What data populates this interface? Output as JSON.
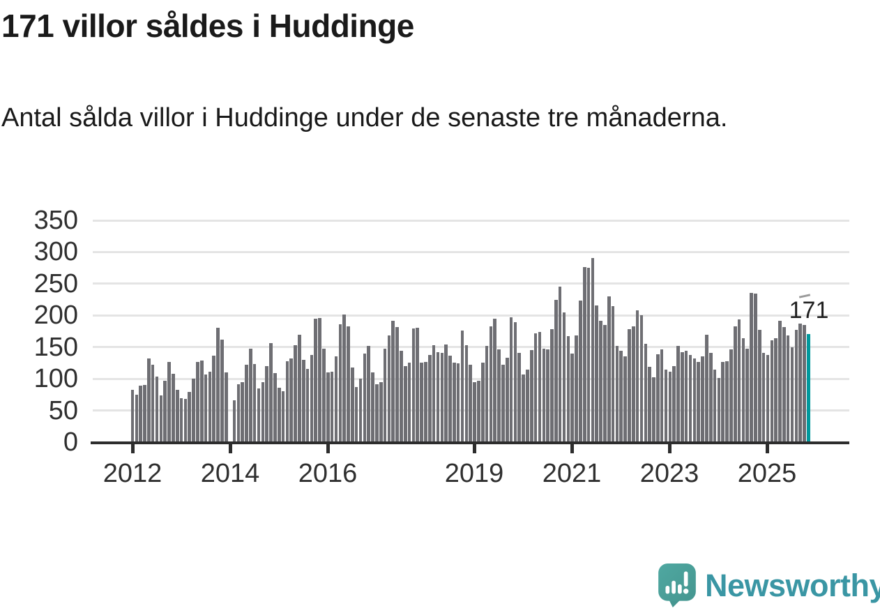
{
  "header": {
    "title": "171 villor såldes i Huddinge",
    "subtitle": "Antal sålda villor i Huddinge under de senaste tre månaderna."
  },
  "chart_data": {
    "type": "bar",
    "title": "171 villor såldes i Huddinge",
    "subtitle": "Antal sålda villor i Huddinge under de senaste tre månaderna.",
    "xlabel": "",
    "ylabel": "",
    "ylim": [
      0,
      350
    ],
    "grid": true,
    "start_month": "2012-01",
    "end_month": "2025-11",
    "y_ticks": [
      0,
      50,
      100,
      150,
      200,
      250,
      300,
      350
    ],
    "x_tick_years": [
      2012,
      2014,
      2016,
      2019,
      2021,
      2023,
      2025
    ],
    "values": [
      82,
      75,
      89,
      90,
      132,
      122,
      104,
      74,
      97,
      127,
      108,
      82,
      69,
      68,
      79,
      100,
      127,
      129,
      107,
      111,
      136,
      181,
      162,
      110,
      null,
      66,
      91,
      95,
      122,
      147,
      123,
      85,
      95,
      120,
      156,
      109,
      86,
      80,
      128,
      132,
      153,
      170,
      130,
      116,
      138,
      195,
      196,
      147,
      110,
      111,
      135,
      186,
      201,
      183,
      118,
      87,
      100,
      140,
      152,
      110,
      91,
      95,
      148,
      168,
      191,
      182,
      144,
      120,
      125,
      179,
      180,
      125,
      127,
      138,
      153,
      142,
      141,
      154,
      137,
      125,
      124,
      176,
      153,
      122,
      95,
      97,
      126,
      152,
      183,
      195,
      146,
      122,
      133,
      197,
      189,
      141,
      107,
      115,
      145,
      172,
      174,
      147,
      146,
      178,
      224,
      245,
      205,
      167,
      140,
      168,
      223,
      276,
      275,
      291,
      216,
      191,
      185,
      230,
      215,
      152,
      144,
      135,
      178,
      183,
      208,
      200,
      155,
      119,
      102,
      139,
      146,
      114,
      111,
      120,
      152,
      142,
      144,
      138,
      132,
      127,
      135,
      169,
      141,
      114,
      101,
      127,
      128,
      146,
      183,
      194,
      164,
      148,
      236,
      234,
      177,
      141,
      138,
      161,
      164,
      192,
      182,
      168,
      150,
      177,
      187,
      185,
      171
    ],
    "highlight_last": true,
    "highlight_label": "171",
    "bar_color": "#6e6e73",
    "highlight_color": "#00999d",
    "legend": "none"
  },
  "footer": {
    "brand": "Newsworthy"
  },
  "colors": {
    "background": "#ffffff",
    "text": "#1a1a1a",
    "axis": "#2d2d2d",
    "gridline": "#e4e4e4",
    "bar": "#6e6e73",
    "highlight": "#00999d",
    "brand_text": "#3a96a4",
    "brand_bubble": "#4aa19c"
  }
}
